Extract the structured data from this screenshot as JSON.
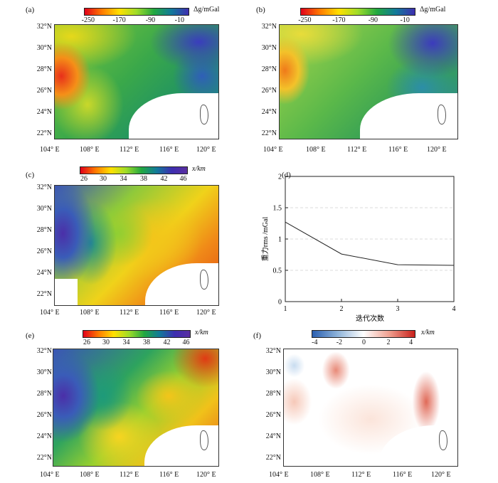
{
  "panels": {
    "a": {
      "label": "(a)",
      "unit": "Δg/mGal",
      "ticks": [
        "-250",
        "-170",
        "-90",
        "-10"
      ]
    },
    "b": {
      "label": "(b)",
      "unit": "Δg/mGal",
      "ticks": [
        "-250",
        "-170",
        "-90",
        "-10"
      ]
    },
    "c": {
      "label": "(c)",
      "unit": "x/km",
      "ticks": [
        "26",
        "30",
        "34",
        "38",
        "42",
        "46"
      ]
    },
    "d": {
      "label": "(d)"
    },
    "e": {
      "label": "(e)",
      "unit": "x/km",
      "ticks": [
        "26",
        "30",
        "34",
        "38",
        "42",
        "46"
      ]
    },
    "f": {
      "label": "(f)",
      "unit": "x/km",
      "ticks": [
        "-4",
        "-2",
        "0",
        "2",
        "4"
      ]
    }
  },
  "map_axes": {
    "lat_labels": [
      "32°N",
      "30°N",
      "28°N",
      "26°N",
      "24°N",
      "22°N"
    ],
    "lon_labels": [
      "104° E",
      "108° E",
      "112° E",
      "116° E",
      "120° E"
    ]
  },
  "chart_data": {
    "type": "line",
    "x": [
      1,
      2,
      3,
      4
    ],
    "values": [
      1.27,
      0.76,
      0.59,
      0.58
    ],
    "xlabel": "迭代次数",
    "ylabel": "重力rms /mGal",
    "xlim": [
      1,
      4
    ],
    "ylim": [
      0,
      2
    ],
    "xticks": [
      "1",
      "2",
      "3",
      "4"
    ],
    "yticks": [
      "0",
      "0.5",
      "1",
      "1.5",
      "2"
    ],
    "grid": "horizontal dashed"
  }
}
